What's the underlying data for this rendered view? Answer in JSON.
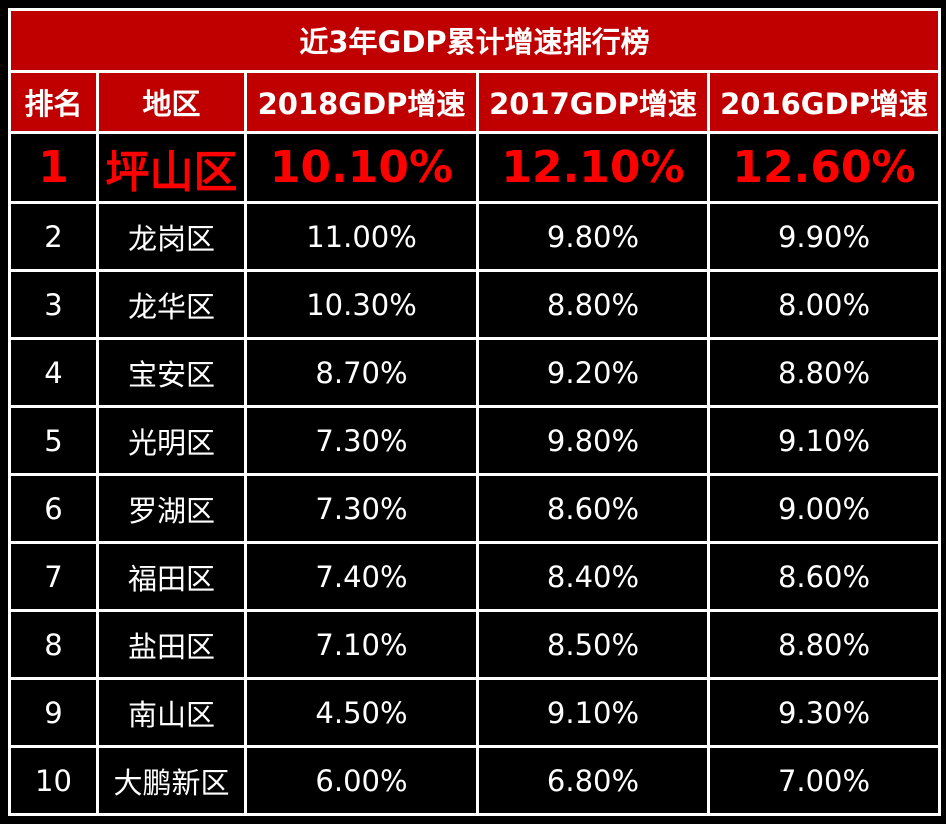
{
  "title": "近3年GDP累计增速排行榜",
  "headers": {
    "rank": "排名",
    "region": "地区",
    "y2018": "2018GDP增速",
    "y2017": "2017GDP增速",
    "y2016": "2016GDP增速"
  },
  "rows": [
    {
      "rank": "1",
      "region": "坪山区",
      "y2018": "10.10%",
      "y2017": "12.10%",
      "y2016": "12.60%"
    },
    {
      "rank": "2",
      "region": "龙岗区",
      "y2018": "11.00%",
      "y2017": "9.80%",
      "y2016": "9.90%"
    },
    {
      "rank": "3",
      "region": "龙华区",
      "y2018": "10.30%",
      "y2017": "8.80%",
      "y2016": "8.00%"
    },
    {
      "rank": "4",
      "region": "宝安区",
      "y2018": "8.70%",
      "y2017": "9.20%",
      "y2016": "8.80%"
    },
    {
      "rank": "5",
      "region": "光明区",
      "y2018": "7.30%",
      "y2017": "9.80%",
      "y2016": "9.10%"
    },
    {
      "rank": "6",
      "region": "罗湖区",
      "y2018": "7.30%",
      "y2017": "8.60%",
      "y2016": "9.00%"
    },
    {
      "rank": "7",
      "region": "福田区",
      "y2018": "7.40%",
      "y2017": "8.40%",
      "y2016": "8.60%"
    },
    {
      "rank": "8",
      "region": "盐田区",
      "y2018": "7.10%",
      "y2017": "8.50%",
      "y2016": "8.80%"
    },
    {
      "rank": "9",
      "region": "南山区",
      "y2018": "4.50%",
      "y2017": "9.10%",
      "y2016": "9.30%"
    },
    {
      "rank": "10",
      "region": "大鹏新区",
      "y2018": "6.00%",
      "y2017": "6.80%",
      "y2016": "7.00%"
    }
  ],
  "colors": {
    "header_bg": "#c00000",
    "top_text": "#ff0000",
    "body_bg": "#000000",
    "text": "#ffffff",
    "grid": "#ffffff"
  }
}
